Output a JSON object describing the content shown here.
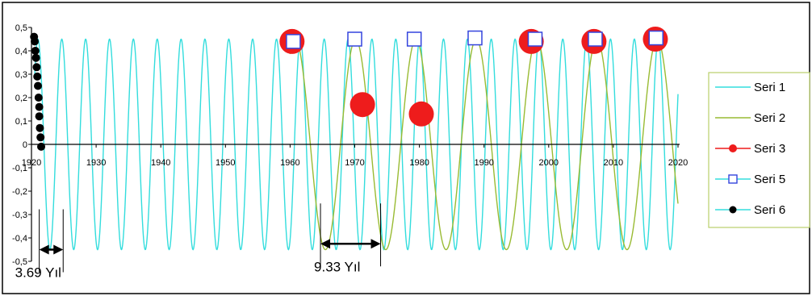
{
  "chart_data": {
    "type": "line",
    "title": "",
    "xlabel": "",
    "ylabel": "",
    "xlim": [
      1920,
      2020
    ],
    "ylim": [
      -0.5,
      0.5
    ],
    "x_ticks": [
      "1920",
      "1930",
      "1940",
      "1950",
      "1960",
      "1970",
      "1980",
      "1990",
      "2000",
      "2010",
      "2020"
    ],
    "y_ticks": [
      "0,5",
      "0,4",
      "0,3",
      "0,2",
      "0,1",
      "0",
      "-0,1",
      "-0,2",
      "-0,3",
      "-0,4",
      "-0,5"
    ],
    "grid": false,
    "legend_position": "right",
    "series": [
      {
        "name": "Seri 1",
        "color": "#33dddd",
        "style": "line",
        "period_years": 3.69,
        "amplitude": 0.45,
        "x_start": 1920.5,
        "x_end": 2020,
        "peak_year": 1921.0
      },
      {
        "name": "Seri 2",
        "color": "#99bb33",
        "style": "line",
        "period_years": 9.33,
        "amplitude": 0.45,
        "x_start": 1960,
        "x_end": 2020,
        "peak_year": 1960.8
      },
      {
        "name": "Seri 3",
        "color": "#ee1c1c",
        "style": "marker-circle",
        "points": [
          [
            1960.3,
            0.44
          ],
          [
            1971.2,
            0.17
          ],
          [
            1980.3,
            0.13
          ],
          [
            1997.3,
            0.44
          ],
          [
            2007.0,
            0.44
          ],
          [
            2016.5,
            0.45
          ]
        ]
      },
      {
        "name": "Seri 5",
        "color": "#3344dd",
        "style": "marker-square",
        "points": [
          [
            1960.5,
            0.44
          ],
          [
            1970.0,
            0.45
          ],
          [
            1979.2,
            0.45
          ],
          [
            1988.6,
            0.455
          ],
          [
            1997.9,
            0.45
          ],
          [
            2007.2,
            0.45
          ],
          [
            2016.6,
            0.455
          ]
        ]
      },
      {
        "name": "Seri 6",
        "color": "#000000",
        "style": "marker-dot",
        "points": [
          [
            1920.4,
            0.46
          ],
          [
            1920.5,
            0.44
          ],
          [
            1920.6,
            0.4
          ],
          [
            1920.7,
            0.37
          ],
          [
            1920.8,
            0.33
          ],
          [
            1920.9,
            0.29
          ],
          [
            1921.0,
            0.25
          ],
          [
            1921.1,
            0.2
          ],
          [
            1921.2,
            0.16
          ],
          [
            1921.2,
            0.12
          ],
          [
            1921.3,
            0.07
          ],
          [
            1921.4,
            0.03
          ],
          [
            1921.5,
            -0.01
          ]
        ]
      }
    ],
    "annotations": [
      {
        "text": "3.69 Yıl",
        "x_from": 1921.2,
        "x_to": 1924.9,
        "y": -0.45
      },
      {
        "text": "9.33 Yıl",
        "x_from": 1964.7,
        "x_to": 1974.0,
        "y": -0.425
      }
    ]
  }
}
